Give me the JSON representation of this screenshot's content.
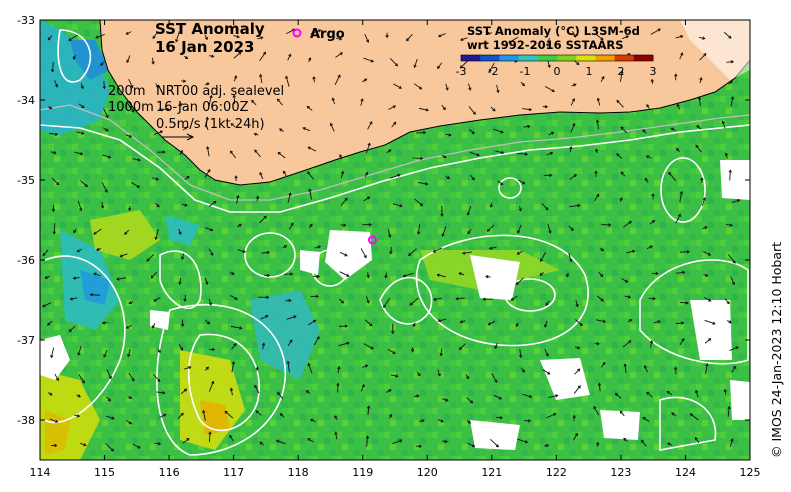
{
  "title": {
    "line1": "SST Anomaly",
    "line2": "16 Jan 2023"
  },
  "argo_legend": {
    "label": "Argo",
    "color": "#ff00ff"
  },
  "legend_box": {
    "contour_labels": [
      "200m",
      "1000m"
    ],
    "source": "NRT00 adj. sealevel",
    "time": "16-Jan 06:00Z",
    "vector_scale": "0.5m/s (1kt 24h)"
  },
  "colorbar": {
    "title_line1": "SST Anomaly (°C) L3SM-6d",
    "title_line2": "wrt 1992-2016 SSTAARS",
    "ticks": [
      "-3",
      "-2",
      "-1",
      "0",
      "1",
      "2",
      "3"
    ],
    "colors": [
      "#1f1a8f",
      "#0f54c9",
      "#1f97e6",
      "#2dc7c0",
      "#3dcc48",
      "#7ed321",
      "#d8e10b",
      "#f0a000",
      "#d43a00",
      "#8c0000"
    ]
  },
  "axes": {
    "lon_ticks": [
      "114",
      "115",
      "116",
      "117",
      "118",
      "119",
      "120",
      "121",
      "122",
      "123",
      "124",
      "125"
    ],
    "lat_ticks": [
      "-33",
      "-34",
      "-35",
      "-36",
      "-37",
      "-38"
    ],
    "lon_range": [
      114,
      125
    ],
    "lat_range": [
      -38.5,
      -33
    ]
  },
  "argo_floats": [
    {
      "lon": 119.15,
      "lat": -35.75
    }
  ],
  "credit": "© IMOS 24-Jan-2023 12:10 Hobart",
  "colors": {
    "land": "#f8c89c",
    "ocean_base": "#36c040",
    "coast_outline": "#000000",
    "contour": "#ffffff"
  }
}
